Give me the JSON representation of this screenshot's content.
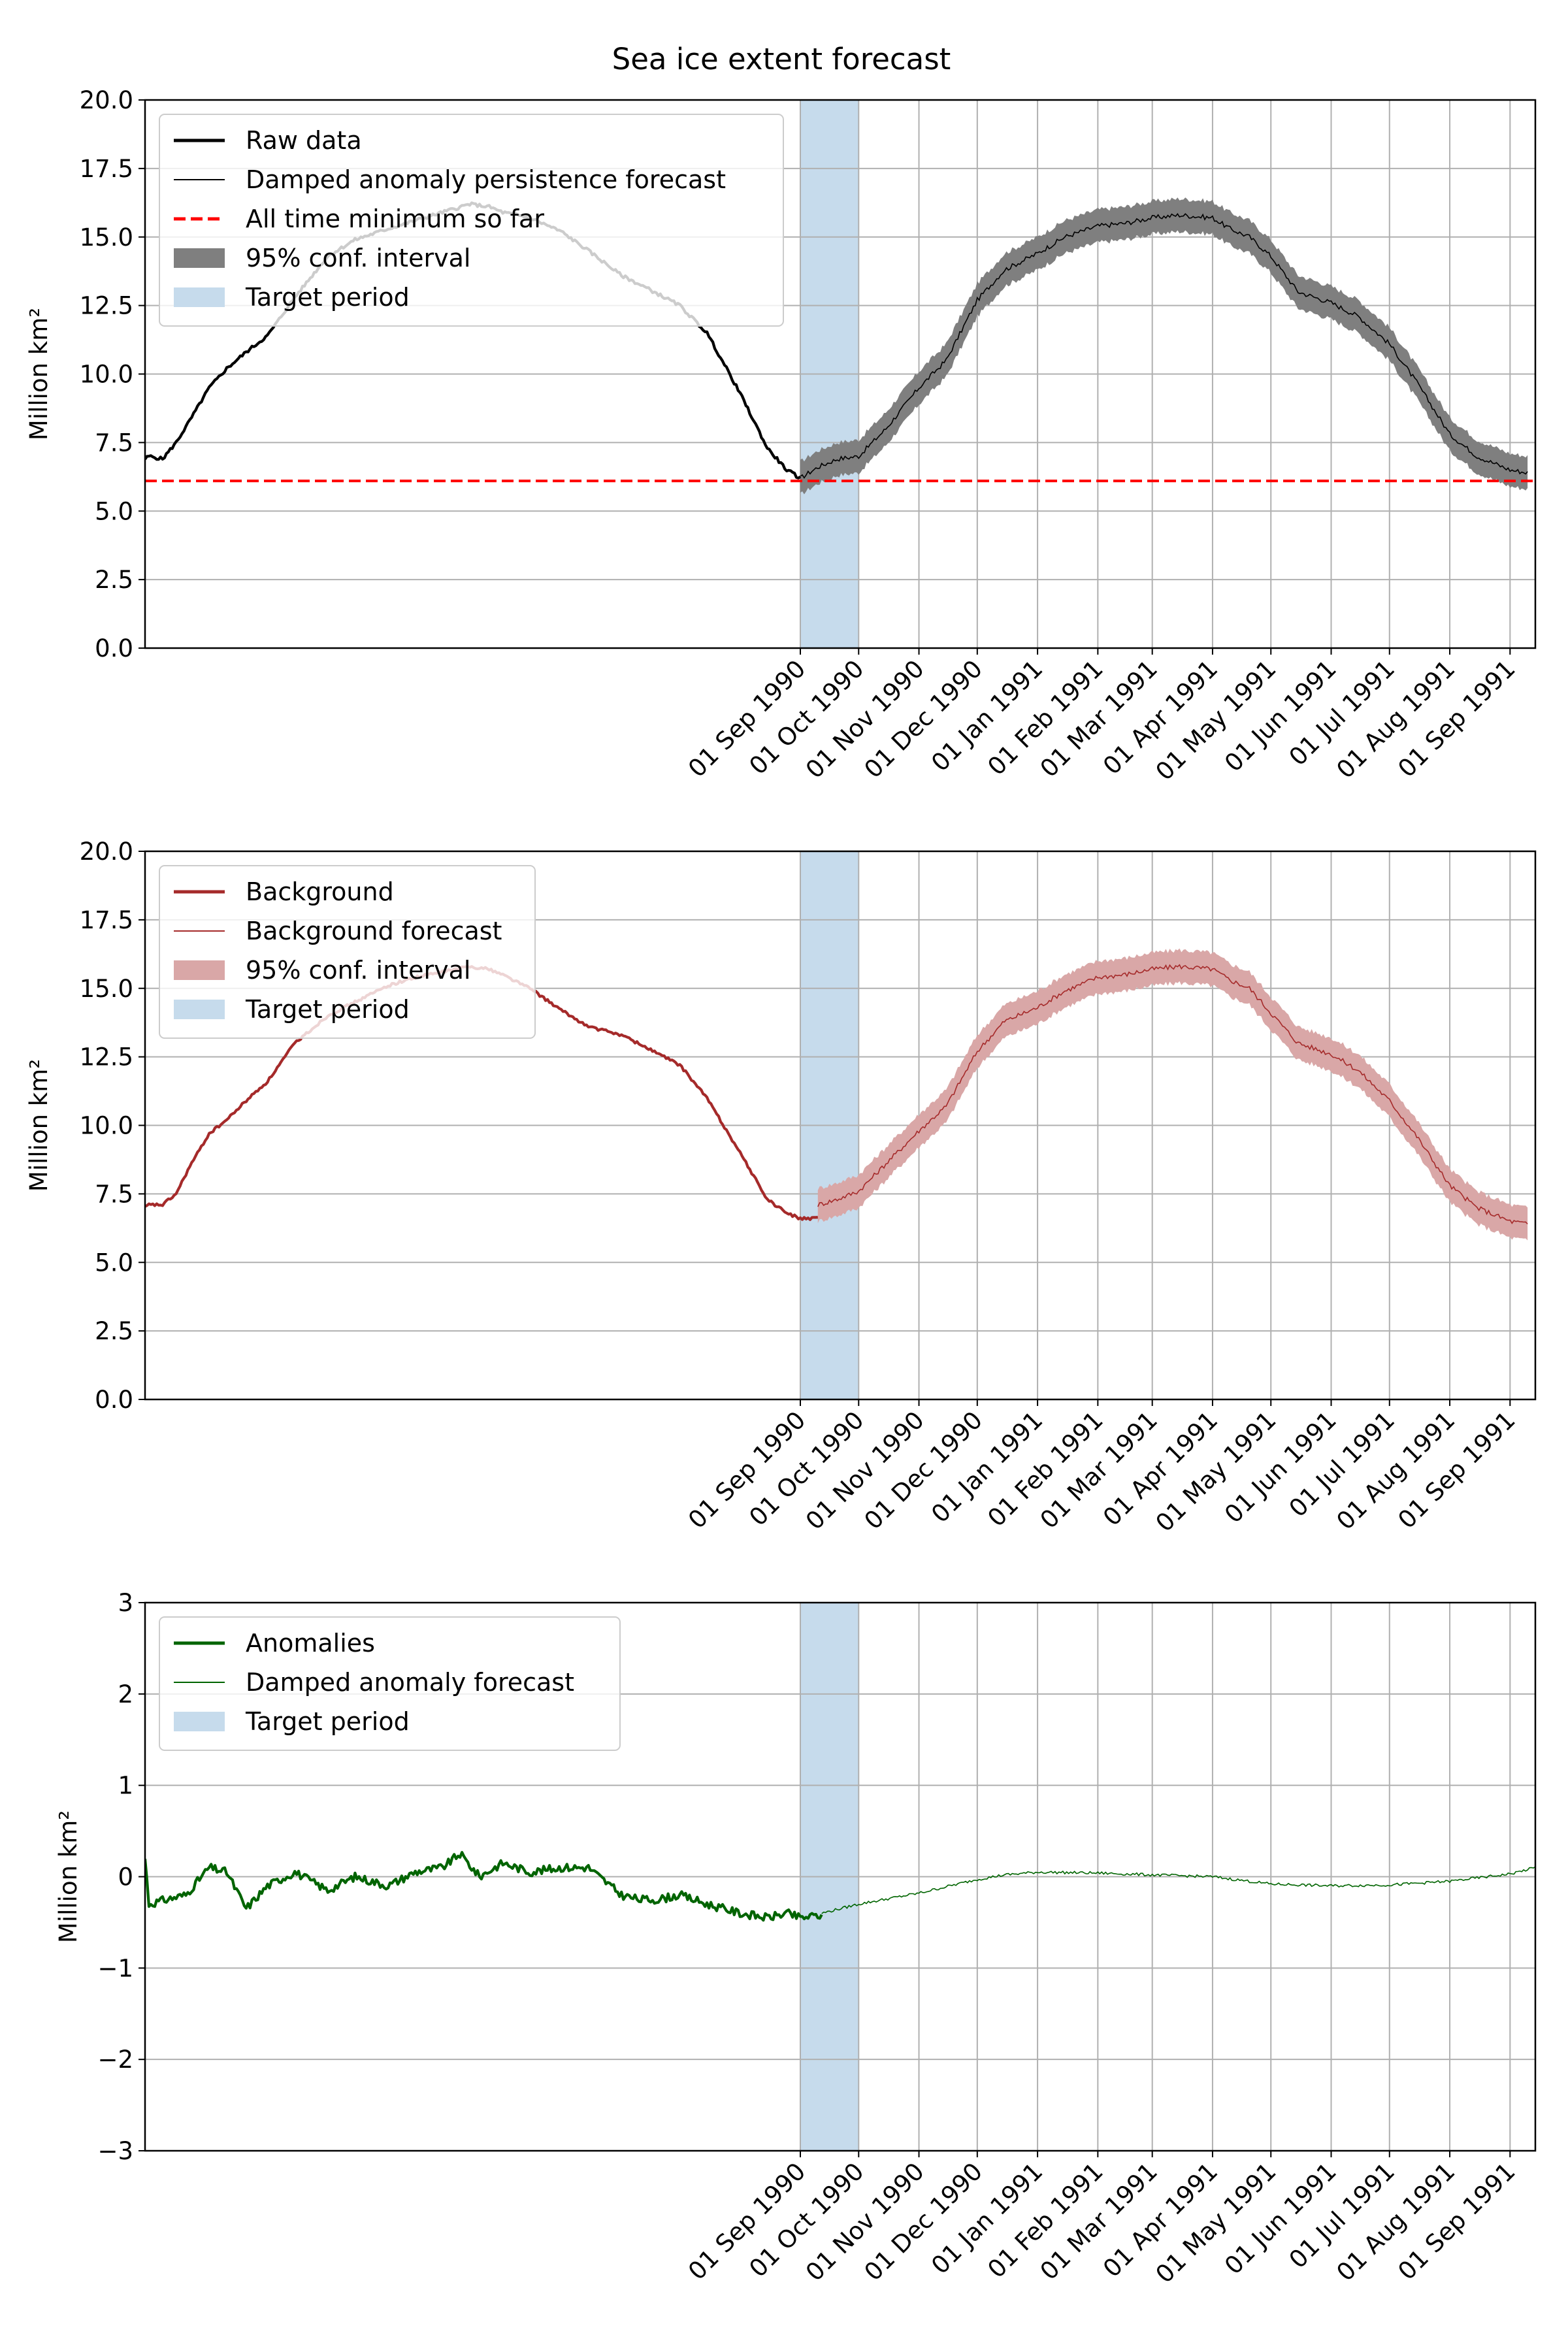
{
  "figure": {
    "title": "Sea ice extent forecast"
  },
  "x_tick_labels": [
    "01 Sep 1990",
    "01 Oct 1990",
    "01 Nov 1990",
    "01 Dec 1990",
    "01 Jan 1991",
    "01 Feb 1991",
    "01 Mar 1991",
    "01 Apr 1991",
    "01 May 1991",
    "01 Jun 1991",
    "01 Jul 1991",
    "01 Aug 1991",
    "01 Sep 1991"
  ],
  "colors": {
    "raw": "#000000",
    "minimum": "#ff0000",
    "ci_raw": "#7f7f7f",
    "background": "#a52a2a",
    "ci_background": "#d9a7a7",
    "anomalies": "#006400",
    "target": "#c6dbec",
    "grid": "#b0b0b0"
  },
  "chart_data": [
    {
      "type": "line",
      "ylabel": "Million km²",
      "ylim": [
        0,
        20
      ],
      "yticks": [
        "0.0",
        "2.5",
        "5.0",
        "7.5",
        "10.0",
        "12.5",
        "15.0",
        "17.5",
        "20.0"
      ],
      "x_range": [
        "1989-09-29",
        "1991-09-14"
      ],
      "grid": "y and x ticks",
      "legend_position": "upper-left",
      "legend": [
        "Raw data",
        "Damped anomaly persistence forecast",
        "All time minimum so far",
        "95% conf. interval",
        "Target period"
      ],
      "target_period": [
        "1990-09-01",
        "1990-10-01"
      ],
      "hline": 6.1,
      "observed": {
        "x": [
          "1989-09-29",
          "1989-10-01",
          "1989-10-08",
          "1989-10-15",
          "1989-10-22",
          "1989-11-01",
          "1989-11-10",
          "1989-11-20",
          "1989-12-01",
          "1989-12-15",
          "1990-01-01",
          "1990-01-15",
          "1990-02-01",
          "1990-02-15",
          "1990-03-01",
          "1990-03-15",
          "1990-03-25",
          "1990-04-01",
          "1990-04-15",
          "1990-05-01",
          "1990-05-15",
          "1990-06-01",
          "1990-06-15",
          "1990-07-01",
          "1990-07-15",
          "1990-08-01",
          "1990-08-15",
          "1990-08-25",
          "1990-09-01"
        ],
        "y": [
          6.9,
          7.0,
          6.9,
          7.5,
          8.3,
          9.5,
          10.2,
          10.8,
          11.4,
          12.8,
          14.3,
          14.9,
          15.3,
          15.6,
          15.9,
          16.2,
          16.1,
          15.9,
          15.7,
          15.2,
          14.5,
          13.6,
          13.1,
          12.5,
          11.5,
          9.3,
          7.3,
          6.5,
          6.2
        ]
      },
      "forecast": {
        "x": [
          "1990-09-01",
          "1990-09-10",
          "1990-09-20",
          "1990-10-01",
          "1990-10-15",
          "1990-11-01",
          "1990-11-15",
          "1990-12-01",
          "1990-12-15",
          "1991-01-01",
          "1991-01-15",
          "1991-02-01",
          "1991-02-15",
          "1991-03-01",
          "1991-03-15",
          "1991-04-01",
          "1991-04-10",
          "1991-04-20",
          "1991-05-01",
          "1991-05-15",
          "1991-06-01",
          "1991-06-15",
          "1991-07-01",
          "1991-07-15",
          "1991-08-01",
          "1991-08-15",
          "1991-09-01",
          "1991-09-10"
        ],
        "y": [
          6.2,
          6.6,
          6.9,
          7.0,
          8.0,
          9.5,
          10.5,
          12.7,
          13.8,
          14.4,
          15.0,
          15.4,
          15.5,
          15.7,
          15.8,
          15.7,
          15.3,
          15.0,
          14.3,
          13.0,
          12.6,
          12.1,
          11.1,
          9.7,
          7.8,
          7.0,
          6.5,
          6.4
        ],
        "ci_halfwidth": 0.6
      }
    },
    {
      "type": "line",
      "ylabel": "Million km²",
      "ylim": [
        0,
        20
      ],
      "yticks": [
        "0.0",
        "2.5",
        "5.0",
        "7.5",
        "10.0",
        "12.5",
        "15.0",
        "17.5",
        "20.0"
      ],
      "x_range": [
        "1989-09-29",
        "1991-09-14"
      ],
      "grid": "y and x ticks",
      "legend_position": "upper-left",
      "legend": [
        "Background",
        "Background forecast",
        "95% conf. interval",
        "Target period"
      ],
      "target_period": [
        "1990-09-01",
        "1990-10-01"
      ],
      "observed": {
        "x": [
          "1989-09-29",
          "1989-10-01",
          "1989-10-08",
          "1989-10-15",
          "1989-10-22",
          "1989-11-01",
          "1989-11-10",
          "1989-11-20",
          "1989-12-01",
          "1989-12-15",
          "1990-01-01",
          "1990-01-15",
          "1990-02-01",
          "1990-02-15",
          "1990-03-01",
          "1990-03-15",
          "1990-03-25",
          "1990-04-01",
          "1990-04-15",
          "1990-05-01",
          "1990-05-15",
          "1990-06-01",
          "1990-06-15",
          "1990-07-01",
          "1990-07-15",
          "1990-08-01",
          "1990-08-15",
          "1990-08-25",
          "1990-09-01",
          "1990-09-10"
        ],
        "y": [
          7.0,
          7.1,
          7.1,
          7.5,
          8.5,
          9.7,
          10.2,
          10.9,
          11.6,
          13.0,
          14.0,
          14.5,
          15.1,
          15.4,
          15.6,
          15.8,
          15.7,
          15.5,
          15.0,
          14.2,
          13.6,
          13.3,
          12.8,
          12.2,
          11.0,
          9.0,
          7.3,
          6.8,
          6.6,
          6.6
        ]
      },
      "forecast": {
        "x": [
          "1990-09-10",
          "1990-09-20",
          "1990-10-01",
          "1990-10-15",
          "1990-11-01",
          "1990-11-15",
          "1990-12-01",
          "1990-12-15",
          "1991-01-01",
          "1991-01-15",
          "1991-02-01",
          "1991-02-15",
          "1991-03-01",
          "1991-03-15",
          "1991-04-01",
          "1991-04-10",
          "1991-04-20",
          "1991-05-01",
          "1991-05-15",
          "1991-06-01",
          "1991-06-15",
          "1991-07-01",
          "1991-07-15",
          "1991-08-01",
          "1991-08-15",
          "1991-09-01",
          "1991-09-10"
        ],
        "y": [
          7.1,
          7.3,
          7.6,
          8.6,
          9.8,
          10.7,
          12.7,
          13.8,
          14.3,
          14.9,
          15.4,
          15.5,
          15.7,
          15.8,
          15.7,
          15.3,
          15.0,
          14.1,
          13.0,
          12.6,
          12.0,
          10.9,
          9.6,
          7.8,
          7.0,
          6.5,
          6.4
        ],
        "ci_halfwidth": 0.6
      }
    },
    {
      "type": "line",
      "ylabel": "Million km²",
      "ylim": [
        -3,
        3
      ],
      "yticks": [
        "−3",
        "−2",
        "−1",
        "0",
        "1",
        "2",
        "3"
      ],
      "x_range": [
        "1989-09-29",
        "1991-09-14"
      ],
      "grid": "y and x ticks",
      "legend_position": "upper-left",
      "legend": [
        "Anomalies",
        "Damped anomaly forecast",
        "Target period"
      ],
      "target_period": [
        "1990-09-01",
        "1990-10-01"
      ],
      "observed": {
        "x": [
          "1989-09-29",
          "1989-10-01",
          "1989-10-10",
          "1989-10-20",
          "1989-11-01",
          "1989-11-10",
          "1989-11-20",
          "1989-12-01",
          "1989-12-15",
          "1990-01-01",
          "1990-01-15",
          "1990-02-01",
          "1990-02-15",
          "1990-03-01",
          "1990-03-10",
          "1990-03-20",
          "1990-04-01",
          "1990-04-15",
          "1990-05-01",
          "1990-05-15",
          "1990-06-01",
          "1990-06-10",
          "1990-06-20",
          "1990-07-01",
          "1990-07-15",
          "1990-08-01",
          "1990-08-15",
          "1990-08-25",
          "1990-09-01",
          "1990-09-12"
        ],
        "y": [
          0.2,
          -0.3,
          -0.25,
          -0.2,
          0.1,
          0.05,
          -0.35,
          -0.1,
          0.05,
          -0.15,
          0.0,
          -0.1,
          0.05,
          0.1,
          0.25,
          0.0,
          0.15,
          0.05,
          0.1,
          0.1,
          -0.2,
          -0.25,
          -0.25,
          -0.2,
          -0.3,
          -0.4,
          -0.45,
          -0.4,
          -0.45,
          -0.42
        ]
      },
      "forecast": {
        "x": [
          "1990-09-12",
          "1990-10-01",
          "1990-11-01",
          "1990-12-01",
          "1990-12-15",
          "1991-01-01",
          "1991-02-01",
          "1991-03-01",
          "1991-04-01",
          "1991-05-01",
          "1991-06-01",
          "1991-07-01",
          "1991-08-01",
          "1991-09-01",
          "1991-09-14"
        ],
        "y": [
          -0.4,
          -0.3,
          -0.18,
          -0.03,
          0.02,
          0.05,
          0.04,
          0.02,
          0.0,
          -0.08,
          -0.1,
          -0.09,
          -0.05,
          0.03,
          0.1
        ],
        "ci_halfwidth": 0.0
      }
    }
  ]
}
